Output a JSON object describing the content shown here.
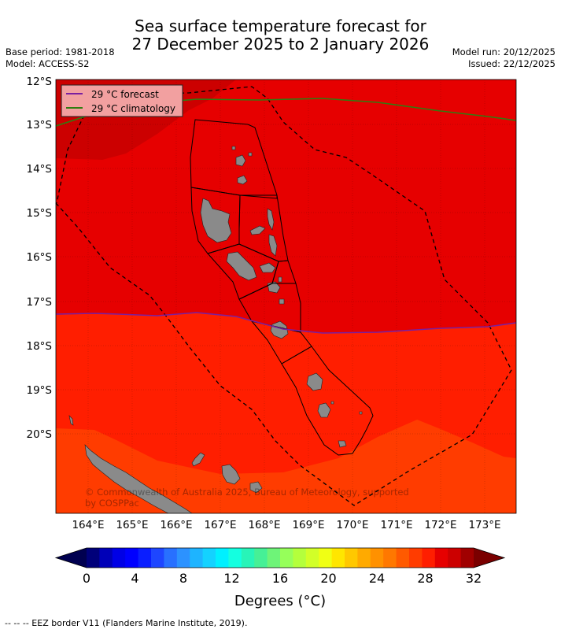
{
  "title": {
    "line1": "Sea surface temperature forecast for",
    "line2": "27 December 2025 to 2 January 2026"
  },
  "meta": {
    "base_period": "Base period: 1981-2018",
    "model": "Model: ACCESS-S2",
    "model_run": "Model run: 20/12/2025",
    "issued": "Issued: 22/12/2025"
  },
  "legend": {
    "forecast_label": "29 °C  forecast",
    "climatology_label": "29 °C  climatology",
    "forecast_color": "#7a1fa0",
    "climatology_color": "#2f7d10"
  },
  "map": {
    "lat_labels": [
      "12°S",
      "13°S",
      "14°S",
      "15°S",
      "16°S",
      "17°S",
      "18°S",
      "19°S",
      "20°S"
    ],
    "lon_labels": [
      "164°E",
      "165°E",
      "166°E",
      "167°E",
      "168°E",
      "169°E",
      "170°E",
      "171°E",
      "172°E",
      "173°E"
    ],
    "copyright_line1": "© Commonwealth of Australia 2025, Bureau of Meteorology, supported",
    "copyright_line2": "by COSPPac",
    "zone_colors": {
      "dark_red_29_5": "#cc0000",
      "red_29": "#e60000",
      "red_28_5": "#ff1e00",
      "orange_28": "#ff3c00",
      "land": "#8a8a8a"
    }
  },
  "colorbar": {
    "tick_labels": [
      "0",
      "4",
      "8",
      "12",
      "16",
      "20",
      "24",
      "28",
      "32"
    ],
    "label": "Degrees (°C)",
    "colors": [
      "#00007a",
      "#0000b8",
      "#0000e6",
      "#0000ff",
      "#0a1eff",
      "#1e46ff",
      "#2870ff",
      "#2c92ff",
      "#1eb4ff",
      "#14d2ff",
      "#00f0ff",
      "#14ffe0",
      "#28f4b8",
      "#46f096",
      "#6ef478",
      "#96ff5a",
      "#b4ff3c",
      "#d2ff28",
      "#f0ff14",
      "#ffe600",
      "#ffc800",
      "#ffaa00",
      "#ff9100",
      "#ff7800",
      "#ff5a00",
      "#ff3c00",
      "#ff1e00",
      "#e60000",
      "#cc0000",
      "#a00000"
    ],
    "under_color": "#000050",
    "over_color": "#7a0000"
  },
  "footer": "--  --  -- EEZ border V11 (Flanders Marine Institute, 2019)."
}
